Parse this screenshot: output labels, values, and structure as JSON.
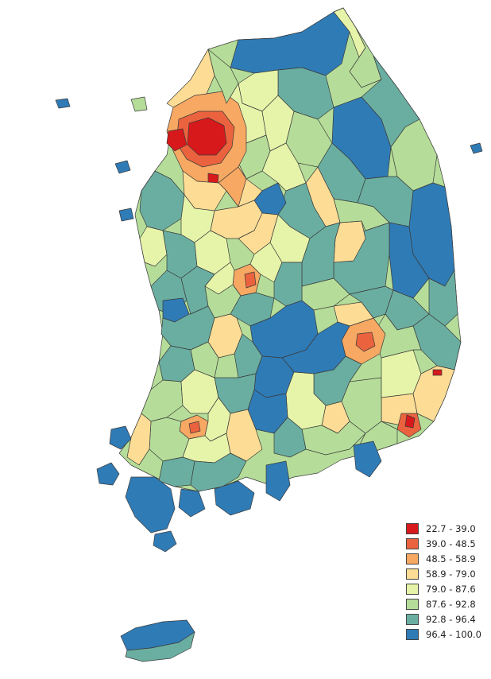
{
  "legend": {
    "classes": [
      {
        "label": "22.7 - 39.0",
        "min": 22.7,
        "max": 39.0,
        "color": "#d7191c"
      },
      {
        "label": "39.0 - 48.5",
        "min": 39.0,
        "max": 48.5,
        "color": "#ea633e"
      },
      {
        "label": "48.5 - 58.9",
        "min": 48.5,
        "max": 58.9,
        "color": "#f7a863"
      },
      {
        "label": "58.9 - 79.0",
        "min": 58.9,
        "max": 79.0,
        "color": "#fddd95"
      },
      {
        "label": "79.0 - 87.6",
        "min": 79.0,
        "max": 87.6,
        "color": "#e6f4a9"
      },
      {
        "label": "87.6 - 92.8",
        "min": 87.6,
        "max": 92.8,
        "color": "#b5dd99"
      },
      {
        "label": "92.8 - 96.4",
        "min": 92.8,
        "max": 96.4,
        "color": "#6aaea1"
      },
      {
        "label": "96.4 - 100.0",
        "min": 96.4,
        "max": 100.0,
        "color": "#2f7bb6"
      }
    ]
  }
}
